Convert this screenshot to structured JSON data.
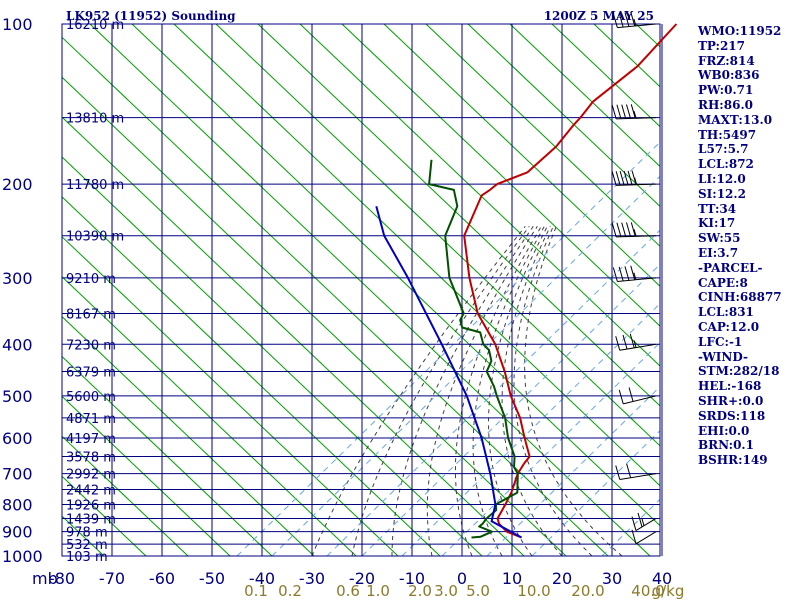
{
  "header": {
    "station_title": "LK952 (11952) Sounding",
    "time_title": "1200Z  5 MAY 25"
  },
  "indices": [
    "WMO:11952",
    "TP:217",
    "FRZ:814",
    "WB0:836",
    "PW:0.71",
    "RH:86.0",
    "MAXT:13.0",
    "TH:5497",
    "L57:5.7",
    "LCL:872",
    "LI:12.0",
    "SI:12.2",
    "TT:34",
    "KI:17",
    "SW:55",
    "EI:3.7",
    "-PARCEL-",
    "CAPE:8",
    "CINH:68877",
    "LCL:831",
    "CAP:12.0",
    "LFC:-1",
    "-WIND-",
    "STM:282/18",
    "HEL:-168",
    "SHR+:0.0",
    "SRDS:118",
    "EHI:0.0",
    "BRN:0.1",
    "BSHR:149"
  ],
  "colors": {
    "frame": "#000080",
    "dry_adiabat": "#00a000",
    "moist_adiabat": "#404040",
    "mixing_ratio": "#6aa6e8",
    "temperature": "#c00000",
    "dewpoint": "#005000",
    "parcel": "#0000c0"
  },
  "chart_data": {
    "type": "line",
    "chart_kind": "skew-T log-P sounding",
    "x_unit_label": "mb",
    "temp_ticks": [
      -80,
      -70,
      -60,
      -50,
      -40,
      -30,
      -20,
      -10,
      0,
      10,
      20,
      30,
      40
    ],
    "pressure_ticks": [
      100,
      200,
      300,
      400,
      500,
      600,
      700,
      800,
      900,
      1000
    ],
    "mixing_ratio_labels": [
      "0.1",
      "0.2",
      "0.6",
      "1.0",
      "2.0",
      "3.0",
      "5.0",
      "10.0",
      "20.0",
      "40.0",
      "g/kg"
    ],
    "height_labels": [
      {
        "p": 100,
        "label": "16210 m"
      },
      {
        "p": 150,
        "label": "13810 m"
      },
      {
        "p": 200,
        "label": "11780 m"
      },
      {
        "p": 250,
        "label": "10390 m"
      },
      {
        "p": 300,
        "label": "9210 m"
      },
      {
        "p": 350,
        "label": "8167 m"
      },
      {
        "p": 400,
        "label": "7230 m"
      },
      {
        "p": 450,
        "label": "6379 m"
      },
      {
        "p": 500,
        "label": "5600 m"
      },
      {
        "p": 550,
        "label": "4871 m"
      },
      {
        "p": 600,
        "label": "4197 m"
      },
      {
        "p": 650,
        "label": "3578 m"
      },
      {
        "p": 700,
        "label": "2992 m"
      },
      {
        "p": 750,
        "label": "2442 m"
      },
      {
        "p": 800,
        "label": "1926 m"
      },
      {
        "p": 850,
        "label": "1439 m"
      },
      {
        "p": 900,
        "label": "978 m"
      },
      {
        "p": 950,
        "label": "532 m"
      },
      {
        "p": 1000,
        "label": "103 m"
      }
    ],
    "series": [
      {
        "key": "temperature",
        "color": "#c00000",
        "points": [
          [
            923,
            8.5
          ],
          [
            900,
            4.5
          ],
          [
            870,
            1.5
          ],
          [
            850,
            0.2
          ],
          [
            820,
            -0.4
          ],
          [
            800,
            -0.8
          ],
          [
            760,
            -1.8
          ],
          [
            700,
            -4.0
          ],
          [
            670,
            -4.6
          ],
          [
            650,
            -4.8
          ],
          [
            600,
            -9.2
          ],
          [
            550,
            -13.8
          ],
          [
            500,
            -19.7
          ],
          [
            450,
            -25.4
          ],
          [
            400,
            -32.3
          ],
          [
            350,
            -41.5
          ],
          [
            300,
            -49.7
          ],
          [
            250,
            -58.5
          ],
          [
            210,
            -62.4
          ],
          [
            205,
            -61.8
          ],
          [
            200,
            -61.4
          ],
          [
            190,
            -57.5
          ],
          [
            170,
            -56.5
          ],
          [
            155,
            -57.0
          ],
          [
            150,
            -57.0
          ],
          [
            140,
            -57.4
          ],
          [
            120,
            -55.0
          ],
          [
            100,
            -55.0
          ]
        ]
      },
      {
        "key": "dewpoint",
        "color": "#005000",
        "points": [
          [
            923,
            -1.5
          ],
          [
            920,
            0.2
          ],
          [
            900,
            1.5
          ],
          [
            880,
            -2.0
          ],
          [
            870,
            -1.8
          ],
          [
            850,
            -2.0
          ],
          [
            820,
            -1.6
          ],
          [
            800,
            -2.7
          ],
          [
            760,
            -0.6
          ],
          [
            700,
            -4.0
          ],
          [
            680,
            -6.0
          ],
          [
            650,
            -7.8
          ],
          [
            600,
            -12.5
          ],
          [
            550,
            -16.8
          ],
          [
            500,
            -22.5
          ],
          [
            480,
            -24.8
          ],
          [
            450,
            -29.0
          ],
          [
            430,
            -30.0
          ],
          [
            410,
            -32.5
          ],
          [
            400,
            -34.7
          ],
          [
            380,
            -37.5
          ],
          [
            372,
            -42.0
          ],
          [
            360,
            -43.8
          ],
          [
            350,
            -44.3
          ],
          [
            300,
            -53.7
          ],
          [
            250,
            -62.3
          ],
          [
            220,
            -65.3
          ],
          [
            205,
            -69.0
          ],
          [
            200,
            -75.0
          ],
          [
            180,
            -79.0
          ]
        ]
      },
      {
        "key": "parcel",
        "color": "#0000c0",
        "points": [
          [
            923,
            8.5
          ],
          [
            860,
            -0.5
          ],
          [
            800,
            -2.8
          ],
          [
            700,
            -9.5
          ],
          [
            600,
            -17.8
          ],
          [
            500,
            -28.5
          ],
          [
            400,
            -43.0
          ],
          [
            300,
            -62.0
          ],
          [
            250,
            -74.5
          ],
          [
            220,
            -81.5
          ]
        ]
      }
    ],
    "winds": [
      {
        "p": 100,
        "dir": 255,
        "spd": 35
      },
      {
        "p": 150,
        "dir": 265,
        "spd": 45
      },
      {
        "p": 200,
        "dir": 265,
        "spd": 55
      },
      {
        "p": 250,
        "dir": 265,
        "spd": 45
      },
      {
        "p": 300,
        "dir": 255,
        "spd": 35
      },
      {
        "p": 400,
        "dir": 245,
        "spd": 25
      },
      {
        "p": 500,
        "dir": 235,
        "spd": 20
      },
      {
        "p": 700,
        "dir": 245,
        "spd": 20
      },
      {
        "p": 850,
        "dir": 150,
        "spd": 15
      },
      {
        "p": 900,
        "dir": 150,
        "spd": 10
      }
    ],
    "ylim": [
      100,
      1000
    ],
    "xlim": [
      -80,
      40
    ],
    "grid": true
  }
}
